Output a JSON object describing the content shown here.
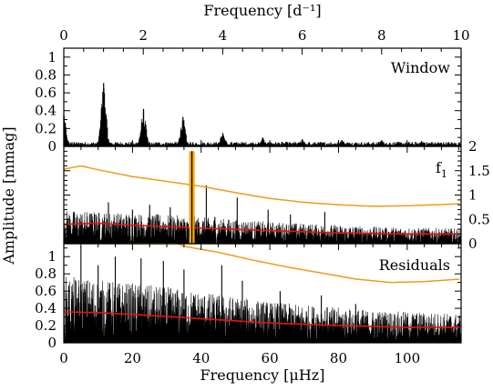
{
  "chart_data": {
    "type": "line",
    "title": "",
    "top_xaxis": {
      "label": "Frequency [d⁻¹]",
      "range": [
        0,
        10
      ],
      "ticks": [
        "0",
        "2",
        "4",
        "6",
        "8",
        "10"
      ]
    },
    "bottom_xaxis": {
      "label": "Frequency [μHz]",
      "range": [
        0,
        115.7
      ],
      "ticks": [
        "0",
        "20",
        "40",
        "60",
        "80",
        "100"
      ]
    },
    "ylabel": "Amplitude [mmag]",
    "panels": [
      {
        "name": "window",
        "annotation": "Window",
        "ylim": [
          0,
          1.1
        ],
        "yticks_left": [
          "0",
          "0.2",
          "0.4",
          "0.6",
          "0.8",
          "1"
        ],
        "peaks_uHz": [
          {
            "x": 0,
            "y": 0.35
          },
          {
            "x": 11.6,
            "y": 0.71
          },
          {
            "x": 23.2,
            "y": 0.42
          },
          {
            "x": 34.7,
            "y": 0.33
          },
          {
            "x": 46.3,
            "y": 0.15
          },
          {
            "x": 57.9,
            "y": 0.1
          },
          {
            "x": 69.4,
            "y": 0.08
          },
          {
            "x": 81.0,
            "y": 0.07
          },
          {
            "x": 92.6,
            "y": 0.07
          },
          {
            "x": 104.2,
            "y": 0.06
          }
        ],
        "noise_floor": 0.04
      },
      {
        "name": "f1",
        "annotation": "f",
        "annotation_sub": "1",
        "ylim": [
          0,
          2.0
        ],
        "yticks_right": [
          "0",
          "0.5",
          "1",
          "1.5",
          "2"
        ],
        "highlight_frequency_uHz": 37.3,
        "highlight_amplitude": 1.9,
        "highlight_color": "#f4a600",
        "spikes_uHz": [
          {
            "x": 37.3,
            "y": 1.9
          },
          {
            "x": 41.5,
            "y": 1.2
          },
          {
            "x": 50.5,
            "y": 0.95
          },
          {
            "x": 13.0,
            "y": 0.85
          },
          {
            "x": 25.0,
            "y": 0.8
          },
          {
            "x": 31.0,
            "y": 0.75
          },
          {
            "x": 20.0,
            "y": 0.7
          },
          {
            "x": 59.5,
            "y": 0.7
          },
          {
            "x": 76.0,
            "y": 0.65
          },
          {
            "x": 66.0,
            "y": 0.6
          },
          {
            "x": 9.0,
            "y": 0.6
          },
          {
            "x": 44.0,
            "y": 0.55
          }
        ],
        "orange_threshold": {
          "x": [
            0,
            5,
            10,
            20,
            30,
            40,
            50,
            60,
            70,
            80,
            90,
            100,
            115.7
          ],
          "y": [
            1.53,
            1.6,
            1.52,
            1.38,
            1.28,
            1.18,
            1.05,
            0.93,
            0.85,
            0.8,
            0.77,
            0.78,
            0.82
          ]
        },
        "red_mean": {
          "x": [
            0,
            10,
            20,
            40,
            60,
            80,
            100,
            115.7
          ],
          "y": [
            0.4,
            0.42,
            0.38,
            0.32,
            0.27,
            0.22,
            0.2,
            0.2
          ]
        },
        "noise_envelope": {
          "x": [
            0,
            30,
            60,
            90,
            115.7
          ],
          "y": [
            0.55,
            0.48,
            0.36,
            0.28,
            0.25
          ]
        }
      },
      {
        "name": "residuals",
        "annotation": "Residuals",
        "ylim": [
          0,
          1.15
        ],
        "yticks_left": [
          "0",
          "0.2",
          "0.4",
          "0.6",
          "0.8",
          "1"
        ],
        "spikes_uHz": [
          {
            "x": 5.0,
            "y": 1.12
          },
          {
            "x": 15.0,
            "y": 1.0
          },
          {
            "x": 22.5,
            "y": 0.98
          },
          {
            "x": 29.0,
            "y": 0.95
          },
          {
            "x": 46.0,
            "y": 0.9
          },
          {
            "x": 35.0,
            "y": 0.85
          },
          {
            "x": 10.0,
            "y": 0.9
          },
          {
            "x": 52.0,
            "y": 0.72
          },
          {
            "x": 63.0,
            "y": 0.6
          },
          {
            "x": 75.0,
            "y": 0.55
          },
          {
            "x": 85.0,
            "y": 0.45
          }
        ],
        "orange_threshold": {
          "x": [
            20,
            28,
            35,
            45,
            55,
            65,
            75,
            85,
            95,
            105,
            115.7
          ],
          "y": [
            1.35,
            1.25,
            1.12,
            1.05,
            0.96,
            0.88,
            0.81,
            0.74,
            0.7,
            0.71,
            0.74
          ]
        },
        "red_mean": {
          "x": [
            0,
            10,
            20,
            40,
            60,
            80,
            100,
            115.7
          ],
          "y": [
            0.36,
            0.35,
            0.33,
            0.28,
            0.23,
            0.2,
            0.18,
            0.18
          ]
        },
        "noise_envelope": {
          "x": [
            0,
            30,
            60,
            90,
            115.7
          ],
          "y": [
            0.62,
            0.52,
            0.38,
            0.3,
            0.27
          ]
        }
      }
    ]
  }
}
